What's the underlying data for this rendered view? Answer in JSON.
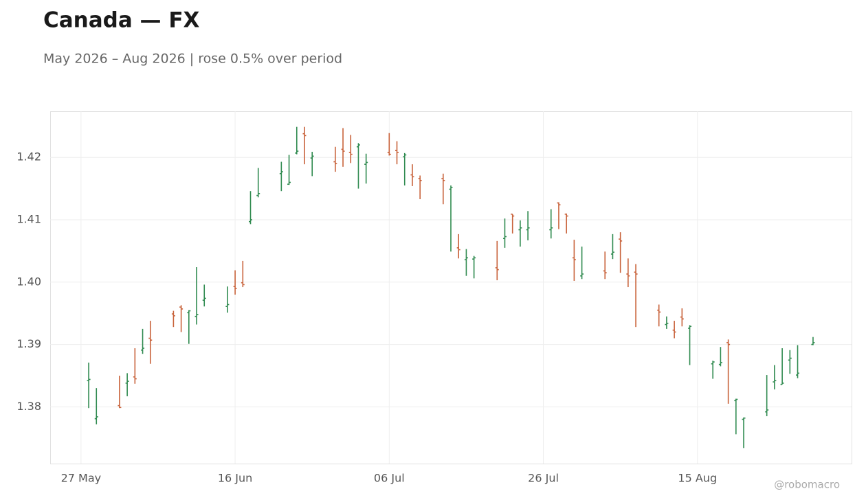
{
  "chart_data": {
    "type": "ohlc",
    "title": "Canada — FX",
    "subtitle": "May 2026 – Aug 2026 | rose 0.5% over period",
    "credit": "@robomacro",
    "up_color": "#2f8a4f",
    "down_color": "#c8623a",
    "grid": true,
    "x": [
      "2026-05-28",
      "2026-05-29",
      "2026-06-01",
      "2026-06-02",
      "2026-06-03",
      "2026-06-04",
      "2026-06-05",
      "2026-06-08",
      "2026-06-09",
      "2026-06-10",
      "2026-06-11",
      "2026-06-12",
      "2026-06-15",
      "2026-06-16",
      "2026-06-17",
      "2026-06-18",
      "2026-06-19",
      "2026-06-22",
      "2026-06-23",
      "2026-06-24",
      "2026-06-25",
      "2026-06-26",
      "2026-06-29",
      "2026-06-30",
      "2026-07-01",
      "2026-07-02",
      "2026-07-03",
      "2026-07-06",
      "2026-07-07",
      "2026-07-08",
      "2026-07-09",
      "2026-07-10",
      "2026-07-13",
      "2026-07-14",
      "2026-07-15",
      "2026-07-16",
      "2026-07-17",
      "2026-07-20",
      "2026-07-21",
      "2026-07-22",
      "2026-07-23",
      "2026-07-24",
      "2026-07-27",
      "2026-07-28",
      "2026-07-29",
      "2026-07-30",
      "2026-07-31",
      "2026-08-03",
      "2026-08-04",
      "2026-08-05",
      "2026-08-06",
      "2026-08-07",
      "2026-08-10",
      "2026-08-11",
      "2026-08-12",
      "2026-08-13",
      "2026-08-14",
      "2026-08-17",
      "2026-08-18",
      "2026-08-19",
      "2026-08-20",
      "2026-08-21",
      "2026-08-24",
      "2026-08-25",
      "2026-08-26",
      "2026-08-27",
      "2026-08-28",
      "2026-08-30"
    ],
    "open": [
      1.3842,
      1.3781,
      1.3802,
      1.3838,
      1.3848,
      1.3891,
      1.391,
      1.3949,
      1.396,
      1.3951,
      1.3945,
      1.3971,
      1.3961,
      1.3993,
      1.3999,
      1.4097,
      1.4139,
      1.4174,
      1.4157,
      1.4207,
      1.4238,
      1.4199,
      1.4193,
      1.4213,
      1.4208,
      1.4217,
      1.4189,
      1.4208,
      1.4211,
      1.4201,
      1.4172,
      1.4166,
      1.4166,
      1.4149,
      1.4055,
      1.4036,
      1.4037,
      1.4023,
      1.407,
      1.4109,
      1.4084,
      1.4084,
      1.4084,
      1.4127,
      1.4109,
      1.4039,
      1.401,
      1.4018,
      1.4045,
      1.4069,
      1.4013,
      1.4016,
      1.3955,
      1.3932,
      1.3923,
      1.3944,
      1.3926,
      1.3869,
      1.3868,
      1.3903,
      1.381,
      1.378,
      1.3792,
      1.384,
      1.3836,
      1.3875,
      1.3851,
      1.39
    ],
    "high": [
      1.3871,
      1.383,
      1.385,
      1.3854,
      1.3894,
      1.3925,
      1.3938,
      1.3954,
      1.3963,
      1.3955,
      1.4024,
      1.3996,
      1.3993,
      1.4019,
      1.4034,
      1.4146,
      1.4183,
      1.4193,
      1.4204,
      1.4249,
      1.4249,
      1.4209,
      1.4217,
      1.4247,
      1.4236,
      1.4223,
      1.4206,
      1.4239,
      1.4226,
      1.4207,
      1.4189,
      1.4171,
      1.4174,
      1.4155,
      1.4077,
      1.4053,
      1.4042,
      1.4066,
      1.4102,
      1.4109,
      1.4099,
      1.4114,
      1.4117,
      1.4128,
      1.411,
      1.4068,
      1.4057,
      1.4049,
      1.4077,
      1.408,
      1.4038,
      1.4029,
      1.3964,
      1.3945,
      1.3938,
      1.3958,
      1.3931,
      1.3874,
      1.3896,
      1.3908,
      1.3813,
      1.3783,
      1.3851,
      1.3867,
      1.3894,
      1.3891,
      1.3899,
      1.3912
    ],
    "low": [
      1.3798,
      1.3772,
      1.3798,
      1.3817,
      1.3837,
      1.3885,
      1.3869,
      1.3928,
      1.392,
      1.3901,
      1.3932,
      1.3961,
      1.3951,
      1.398,
      1.3992,
      1.4093,
      1.4136,
      1.4146,
      1.4156,
      1.4205,
      1.4189,
      1.417,
      1.4177,
      1.4185,
      1.4191,
      1.415,
      1.4158,
      1.4203,
      1.4189,
      1.4155,
      1.4154,
      1.4133,
      1.4125,
      1.4049,
      1.4038,
      1.401,
      1.4006,
      1.4003,
      1.4055,
      1.4078,
      1.4057,
      1.4067,
      1.407,
      1.4085,
      1.4078,
      1.4002,
      1.4005,
      1.4005,
      1.4037,
      1.4015,
      1.3992,
      1.3928,
      1.3929,
      1.3925,
      1.391,
      1.3929,
      1.3867,
      1.3845,
      1.3865,
      1.3805,
      1.3756,
      1.3734,
      1.3785,
      1.3828,
      1.3836,
      1.3853,
      1.3846,
      1.3899
    ],
    "close": [
      1.3844,
      1.3784,
      1.3799,
      1.3841,
      1.3845,
      1.3894,
      1.3907,
      1.3946,
      1.3957,
      1.3954,
      1.3948,
      1.3974,
      1.3964,
      1.399,
      1.3996,
      1.41,
      1.4142,
      1.4177,
      1.416,
      1.421,
      1.4235,
      1.4202,
      1.419,
      1.421,
      1.4205,
      1.422,
      1.4192,
      1.4205,
      1.4208,
      1.4204,
      1.4169,
      1.4163,
      1.4163,
      1.4152,
      1.4052,
      1.4039,
      1.4039,
      1.402,
      1.4073,
      1.4106,
      1.4087,
      1.4087,
      1.4087,
      1.4124,
      1.4106,
      1.4036,
      1.4013,
      1.4015,
      1.4048,
      1.4066,
      1.401,
      1.4013,
      1.3952,
      1.3934,
      1.392,
      1.3941,
      1.3929,
      1.3872,
      1.3871,
      1.39,
      1.3812,
      1.3782,
      1.3795,
      1.3842,
      1.3838,
      1.3878,
      1.3854,
      1.3903
    ],
    "xlim": [
      "2026-05-23",
      "2026-09-04"
    ],
    "xticks": [
      {
        "value": "2026-05-27",
        "label": "27 May"
      },
      {
        "value": "2026-06-16",
        "label": "16 Jun"
      },
      {
        "value": "2026-07-06",
        "label": "06 Jul"
      },
      {
        "value": "2026-07-26",
        "label": "26 Jul"
      },
      {
        "value": "2026-08-15",
        "label": "15 Aug"
      }
    ],
    "ylim": [
      1.3709,
      1.4274
    ],
    "yticks": [
      1.38,
      1.39,
      {
        "value": 1.4,
        "label": "1.40"
      },
      1.41,
      1.42
    ]
  }
}
